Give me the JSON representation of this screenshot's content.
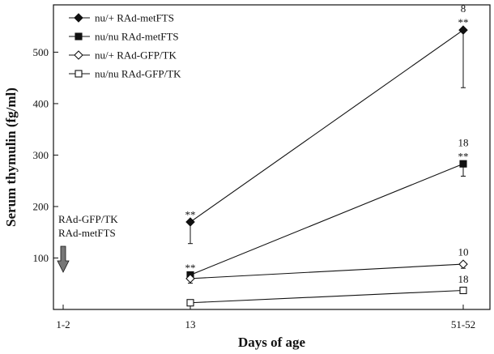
{
  "chart_data": {
    "type": "line",
    "title": "",
    "xlabel": "Days of age",
    "ylabel": "Serum thymulin (fg/ml)",
    "categories": [
      "1-2",
      "13",
      "51-52"
    ],
    "yticks": [
      100,
      200,
      300,
      400,
      500
    ],
    "ylim": [
      0,
      580
    ],
    "grid": false,
    "legend_position": "top-left",
    "series": [
      {
        "name": "nu/+ RAd-metFTS",
        "marker": "diamond",
        "filled": true,
        "points": [
          {
            "x": "13",
            "y": 170,
            "err_low": 128,
            "err_high": 174,
            "sig": "**"
          },
          {
            "x": "51-52",
            "y": 543,
            "err_low": 431,
            "err_high": 548,
            "sig": "**",
            "n": "8"
          }
        ]
      },
      {
        "name": "nu/nu RAd-metFTS",
        "marker": "square",
        "filled": true,
        "points": [
          {
            "x": "13",
            "y": 67,
            "err_low": 62,
            "err_high": 71,
            "sig": "**"
          },
          {
            "x": "51-52",
            "y": 283,
            "err_low": 259,
            "err_high": 287,
            "sig": "**",
            "n": "18"
          }
        ]
      },
      {
        "name": "nu/+ RAd-GFP/TK",
        "marker": "diamond",
        "filled": false,
        "points": [
          {
            "x": "13",
            "y": 60,
            "err_low": 51,
            "err_high": 64
          },
          {
            "x": "51-52",
            "y": 88,
            "err_low": 80,
            "err_high": 92,
            "n": "10"
          }
        ]
      },
      {
        "name": "nu/nu RAd-GFP/TK",
        "marker": "square",
        "filled": false,
        "points": [
          {
            "x": "13",
            "y": 13,
            "err_low": 13,
            "err_high": 13
          },
          {
            "x": "51-52",
            "y": 37,
            "err_low": 33,
            "err_high": 39,
            "n": "18"
          }
        ]
      }
    ],
    "annotations": {
      "treatment_lines": [
        "RAd-GFP/TK",
        "RAd-metFTS"
      ],
      "arrow_at": "1-2",
      "arrow_direction": "down"
    },
    "colors": {
      "ink": "#111111",
      "background": "#ffffff"
    }
  }
}
